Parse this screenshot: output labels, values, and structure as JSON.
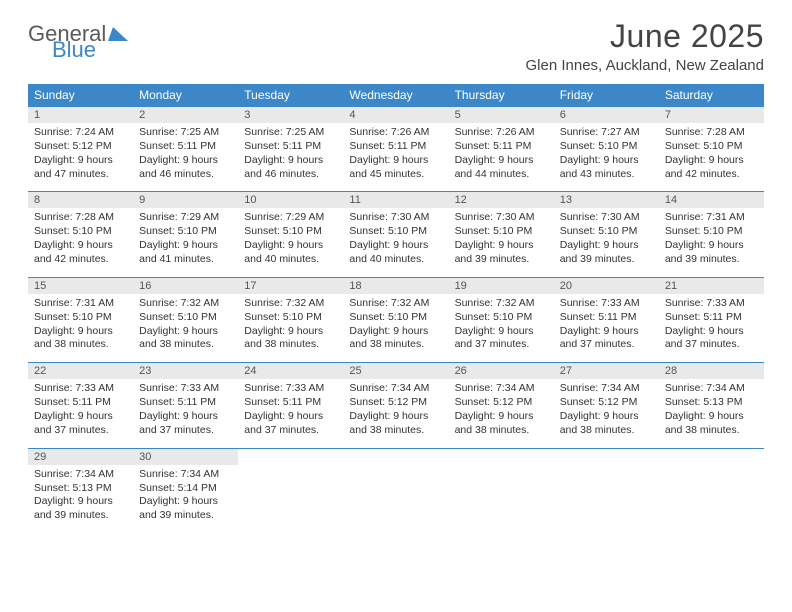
{
  "logo": {
    "line1": "General",
    "line2": "Blue"
  },
  "title": "June 2025",
  "location": "Glen Innes, Auckland, New Zealand",
  "colors": {
    "header_bg": "#3b87c8",
    "header_text": "#ffffff",
    "daynum_bg": "#e9e9e9",
    "daynum_text": "#555555",
    "body_text": "#333333",
    "row_divider": "#3b87c8",
    "logo_gray": "#5a5a5a",
    "logo_blue": "#3b87c8",
    "page_bg": "#ffffff"
  },
  "typography": {
    "title_fontsize": 32,
    "location_fontsize": 15,
    "weekday_fontsize": 12,
    "daynum_fontsize": 11,
    "cell_fontsize": 10.5,
    "logo_fontsize": 22
  },
  "weekdays": [
    "Sunday",
    "Monday",
    "Tuesday",
    "Wednesday",
    "Thursday",
    "Friday",
    "Saturday"
  ],
  "days": [
    {
      "n": "1",
      "sunrise": "7:24 AM",
      "sunset": "5:12 PM",
      "dl": "9 hours and 47 minutes."
    },
    {
      "n": "2",
      "sunrise": "7:25 AM",
      "sunset": "5:11 PM",
      "dl": "9 hours and 46 minutes."
    },
    {
      "n": "3",
      "sunrise": "7:25 AM",
      "sunset": "5:11 PM",
      "dl": "9 hours and 46 minutes."
    },
    {
      "n": "4",
      "sunrise": "7:26 AM",
      "sunset": "5:11 PM",
      "dl": "9 hours and 45 minutes."
    },
    {
      "n": "5",
      "sunrise": "7:26 AM",
      "sunset": "5:11 PM",
      "dl": "9 hours and 44 minutes."
    },
    {
      "n": "6",
      "sunrise": "7:27 AM",
      "sunset": "5:10 PM",
      "dl": "9 hours and 43 minutes."
    },
    {
      "n": "7",
      "sunrise": "7:28 AM",
      "sunset": "5:10 PM",
      "dl": "9 hours and 42 minutes."
    },
    {
      "n": "8",
      "sunrise": "7:28 AM",
      "sunset": "5:10 PM",
      "dl": "9 hours and 42 minutes."
    },
    {
      "n": "9",
      "sunrise": "7:29 AM",
      "sunset": "5:10 PM",
      "dl": "9 hours and 41 minutes."
    },
    {
      "n": "10",
      "sunrise": "7:29 AM",
      "sunset": "5:10 PM",
      "dl": "9 hours and 40 minutes."
    },
    {
      "n": "11",
      "sunrise": "7:30 AM",
      "sunset": "5:10 PM",
      "dl": "9 hours and 40 minutes."
    },
    {
      "n": "12",
      "sunrise": "7:30 AM",
      "sunset": "5:10 PM",
      "dl": "9 hours and 39 minutes."
    },
    {
      "n": "13",
      "sunrise": "7:30 AM",
      "sunset": "5:10 PM",
      "dl": "9 hours and 39 minutes."
    },
    {
      "n": "14",
      "sunrise": "7:31 AM",
      "sunset": "5:10 PM",
      "dl": "9 hours and 39 minutes."
    },
    {
      "n": "15",
      "sunrise": "7:31 AM",
      "sunset": "5:10 PM",
      "dl": "9 hours and 38 minutes."
    },
    {
      "n": "16",
      "sunrise": "7:32 AM",
      "sunset": "5:10 PM",
      "dl": "9 hours and 38 minutes."
    },
    {
      "n": "17",
      "sunrise": "7:32 AM",
      "sunset": "5:10 PM",
      "dl": "9 hours and 38 minutes."
    },
    {
      "n": "18",
      "sunrise": "7:32 AM",
      "sunset": "5:10 PM",
      "dl": "9 hours and 38 minutes."
    },
    {
      "n": "19",
      "sunrise": "7:32 AM",
      "sunset": "5:10 PM",
      "dl": "9 hours and 37 minutes."
    },
    {
      "n": "20",
      "sunrise": "7:33 AM",
      "sunset": "5:11 PM",
      "dl": "9 hours and 37 minutes."
    },
    {
      "n": "21",
      "sunrise": "7:33 AM",
      "sunset": "5:11 PM",
      "dl": "9 hours and 37 minutes."
    },
    {
      "n": "22",
      "sunrise": "7:33 AM",
      "sunset": "5:11 PM",
      "dl": "9 hours and 37 minutes."
    },
    {
      "n": "23",
      "sunrise": "7:33 AM",
      "sunset": "5:11 PM",
      "dl": "9 hours and 37 minutes."
    },
    {
      "n": "24",
      "sunrise": "7:33 AM",
      "sunset": "5:11 PM",
      "dl": "9 hours and 37 minutes."
    },
    {
      "n": "25",
      "sunrise": "7:34 AM",
      "sunset": "5:12 PM",
      "dl": "9 hours and 38 minutes."
    },
    {
      "n": "26",
      "sunrise": "7:34 AM",
      "sunset": "5:12 PM",
      "dl": "9 hours and 38 minutes."
    },
    {
      "n": "27",
      "sunrise": "7:34 AM",
      "sunset": "5:12 PM",
      "dl": "9 hours and 38 minutes."
    },
    {
      "n": "28",
      "sunrise": "7:34 AM",
      "sunset": "5:13 PM",
      "dl": "9 hours and 38 minutes."
    },
    {
      "n": "29",
      "sunrise": "7:34 AM",
      "sunset": "5:13 PM",
      "dl": "9 hours and 39 minutes."
    },
    {
      "n": "30",
      "sunrise": "7:34 AM",
      "sunset": "5:14 PM",
      "dl": "9 hours and 39 minutes."
    }
  ],
  "labels": {
    "sunrise": "Sunrise:",
    "sunset": "Sunset:",
    "daylight": "Daylight:"
  }
}
